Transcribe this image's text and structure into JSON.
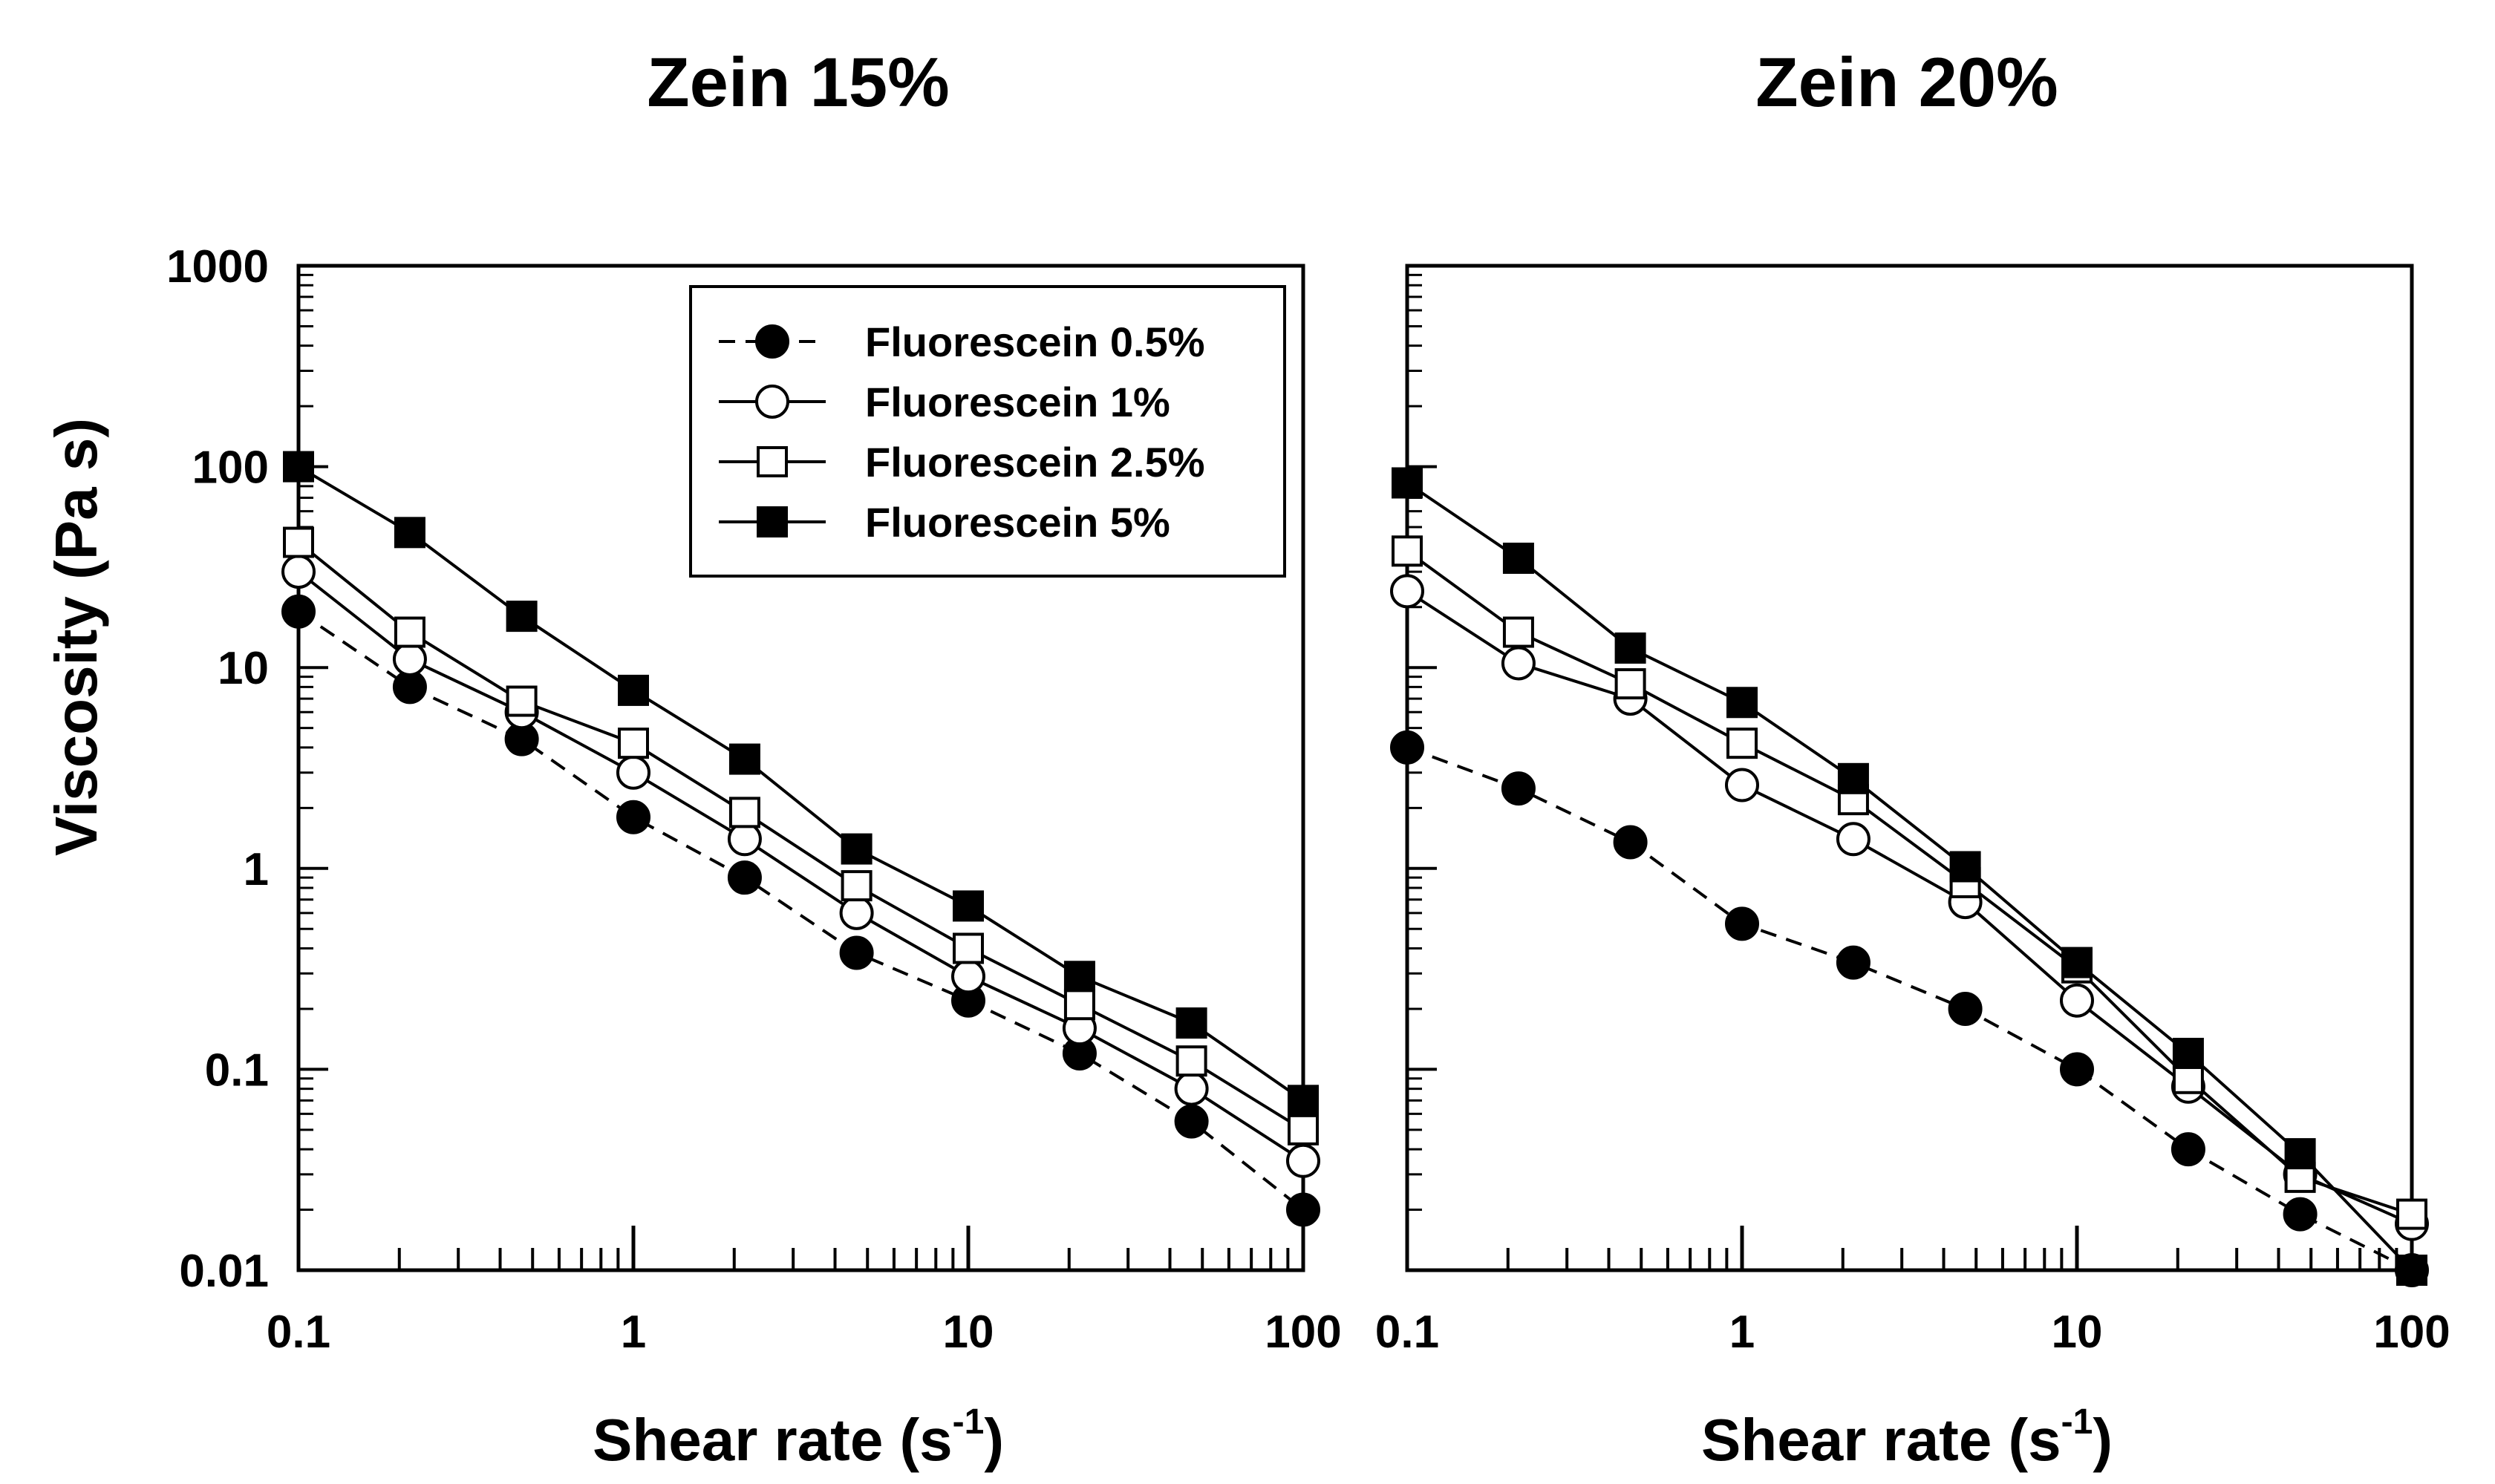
{
  "figure": {
    "y_axis_label": "Viscosity (Pa s)"
  },
  "legend": {
    "entries": [
      {
        "label": "Fluorescein 0.5%",
        "marker": "filled-circle",
        "line": "dashed"
      },
      {
        "label": "Fluorescein 1%",
        "marker": "open-circle",
        "line": "solid"
      },
      {
        "label": "Fluorescein 2.5%",
        "marker": "open-square",
        "line": "solid"
      },
      {
        "label": "Fluorescein 5%",
        "marker": "filled-square",
        "line": "solid"
      }
    ]
  },
  "chart_data": [
    {
      "type": "line",
      "title": "Zein 15%",
      "xlabel": "Shear rate (s",
      "xlabel_superscript": "-1",
      "xlabel_suffix": ")",
      "ylabel": "Viscosity (Pa s)",
      "xscale": "log",
      "yscale": "log",
      "xlim": [
        0.1,
        100
      ],
      "ylim": [
        0.01,
        1000
      ],
      "xticks": [
        0.1,
        1,
        10,
        100
      ],
      "xtick_labels": [
        "0.1",
        "1",
        "10",
        "100"
      ],
      "yticks": [
        0.01,
        0.1,
        1,
        10,
        100,
        1000
      ],
      "ytick_labels": [
        "0.01",
        "0.1",
        "1",
        "10",
        "100",
        "1000"
      ],
      "legend_position": "top-right",
      "x": [
        0.1,
        0.215,
        0.464,
        1,
        2.15,
        4.64,
        10,
        21.5,
        46.4,
        100
      ],
      "series": [
        {
          "name": "Fluorescein 0.5%",
          "values": [
            19,
            8,
            4.4,
            1.8,
            0.9,
            0.38,
            0.22,
            0.12,
            0.055,
            0.02
          ]
        },
        {
          "name": "Fluorescein 1%",
          "values": [
            30,
            11,
            6,
            3,
            1.4,
            0.6,
            0.29,
            0.16,
            0.08,
            0.035
          ]
        },
        {
          "name": "Fluorescein 2.5%",
          "values": [
            42,
            15,
            6.8,
            4.2,
            1.9,
            0.82,
            0.4,
            0.21,
            0.11,
            0.05
          ]
        },
        {
          "name": "Fluorescein 5%",
          "values": [
            100,
            47,
            18,
            7.7,
            3.5,
            1.25,
            0.65,
            0.29,
            0.17,
            0.07
          ]
        }
      ]
    },
    {
      "type": "line",
      "title": "Zein 20%",
      "xlabel": "Shear rate (s",
      "xlabel_superscript": "-1",
      "xlabel_suffix": ")",
      "xscale": "log",
      "yscale": "log",
      "xlim": [
        0.1,
        100
      ],
      "ylim": [
        0.01,
        1000
      ],
      "xticks": [
        0.1,
        1,
        10,
        100
      ],
      "xtick_labels": [
        "0.1",
        "1",
        "10",
        "100"
      ],
      "yticks": [
        0.01,
        0.1,
        1,
        10,
        100,
        1000
      ],
      "ytick_labels": [],
      "x": [
        0.1,
        0.215,
        0.464,
        1,
        2.15,
        4.64,
        10,
        21.5,
        46.4,
        100
      ],
      "series": [
        {
          "name": "Fluorescein 0.5%",
          "values": [
            4,
            2.5,
            1.35,
            0.53,
            0.34,
            0.2,
            0.1,
            0.04,
            0.019,
            0.01
          ]
        },
        {
          "name": "Fluorescein 1%",
          "values": [
            24,
            10.5,
            7,
            2.6,
            1.4,
            0.68,
            0.22,
            0.082,
            0.03,
            0.017
          ]
        },
        {
          "name": "Fluorescein 2.5%",
          "values": [
            38,
            15,
            8.3,
            4.2,
            2.2,
            0.85,
            0.32,
            0.09,
            0.029,
            0.019
          ]
        },
        {
          "name": "Fluorescein 5%",
          "values": [
            83,
            35,
            12.5,
            6.7,
            2.8,
            1.02,
            0.34,
            0.12,
            0.038,
            0.01
          ]
        }
      ]
    }
  ]
}
